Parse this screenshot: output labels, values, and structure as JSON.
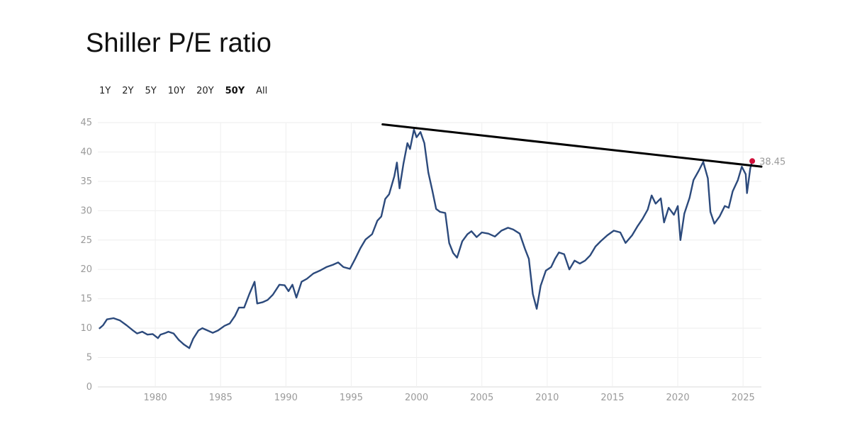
{
  "title": "Shiller P/E ratio",
  "range_buttons": [
    {
      "label": "1Y",
      "active": false
    },
    {
      "label": "2Y",
      "active": false
    },
    {
      "label": "5Y",
      "active": false
    },
    {
      "label": "10Y",
      "active": false
    },
    {
      "label": "20Y",
      "active": false
    },
    {
      "label": "50Y",
      "active": true
    },
    {
      "label": "All",
      "active": false
    }
  ],
  "chart_data": {
    "type": "line",
    "title": "Shiller P/E ratio",
    "xlabel": "",
    "ylabel": "",
    "xlim": [
      1975.6,
      2026.4
    ],
    "ylim": [
      0,
      45
    ],
    "x_ticks": [
      "1980",
      "1985",
      "1990",
      "1995",
      "2000",
      "2005",
      "2010",
      "2015",
      "2020",
      "2025"
    ],
    "y_ticks": [
      "0",
      "5",
      "10",
      "15",
      "20",
      "25",
      "30",
      "35",
      "40",
      "45"
    ],
    "grid": true,
    "legend": "none",
    "series": [
      {
        "color": "#2c4a7c",
        "points": [
          [
            1975.7,
            9.9
          ],
          [
            1976.0,
            10.5
          ],
          [
            1976.3,
            11.5
          ],
          [
            1976.8,
            11.7
          ],
          [
            1977.3,
            11.3
          ],
          [
            1977.8,
            10.5
          ],
          [
            1978.3,
            9.6
          ],
          [
            1978.6,
            9.1
          ],
          [
            1979.0,
            9.4
          ],
          [
            1979.4,
            8.9
          ],
          [
            1979.8,
            9.0
          ],
          [
            1980.2,
            8.3
          ],
          [
            1980.4,
            8.9
          ],
          [
            1980.8,
            9.2
          ],
          [
            1981.0,
            9.4
          ],
          [
            1981.4,
            9.1
          ],
          [
            1981.8,
            8.0
          ],
          [
            1982.2,
            7.2
          ],
          [
            1982.4,
            6.9
          ],
          [
            1982.6,
            6.6
          ],
          [
            1982.9,
            8.2
          ],
          [
            1983.3,
            9.6
          ],
          [
            1983.6,
            10.0
          ],
          [
            1984.0,
            9.6
          ],
          [
            1984.4,
            9.2
          ],
          [
            1984.8,
            9.6
          ],
          [
            1985.3,
            10.4
          ],
          [
            1985.7,
            10.8
          ],
          [
            1986.1,
            12.1
          ],
          [
            1986.4,
            13.5
          ],
          [
            1986.8,
            13.5
          ],
          [
            1987.2,
            15.8
          ],
          [
            1987.6,
            17.9
          ],
          [
            1987.8,
            14.2
          ],
          [
            1988.2,
            14.4
          ],
          [
            1988.6,
            14.8
          ],
          [
            1989.0,
            15.7
          ],
          [
            1989.5,
            17.4
          ],
          [
            1989.9,
            17.3
          ],
          [
            1990.2,
            16.3
          ],
          [
            1990.5,
            17.4
          ],
          [
            1990.8,
            15.2
          ],
          [
            1991.2,
            17.9
          ],
          [
            1991.6,
            18.4
          ],
          [
            1992.1,
            19.3
          ],
          [
            1992.6,
            19.8
          ],
          [
            1993.1,
            20.4
          ],
          [
            1993.6,
            20.8
          ],
          [
            1994.0,
            21.2
          ],
          [
            1994.4,
            20.4
          ],
          [
            1994.9,
            20.1
          ],
          [
            1995.3,
            21.8
          ],
          [
            1995.7,
            23.6
          ],
          [
            1996.1,
            25.1
          ],
          [
            1996.6,
            26.0
          ],
          [
            1997.0,
            28.3
          ],
          [
            1997.3,
            29.0
          ],
          [
            1997.6,
            32.0
          ],
          [
            1997.9,
            32.8
          ],
          [
            1998.3,
            35.9
          ],
          [
            1998.5,
            38.2
          ],
          [
            1998.7,
            33.8
          ],
          [
            1999.0,
            38.0
          ],
          [
            1999.3,
            41.5
          ],
          [
            1999.5,
            40.5
          ],
          [
            1999.8,
            43.8
          ],
          [
            2000.0,
            42.5
          ],
          [
            2000.3,
            43.4
          ],
          [
            2000.6,
            41.5
          ],
          [
            2000.9,
            36.5
          ],
          [
            2001.2,
            33.5
          ],
          [
            2001.5,
            30.3
          ],
          [
            2001.8,
            29.8
          ],
          [
            2002.2,
            29.6
          ],
          [
            2002.5,
            24.5
          ],
          [
            2002.8,
            22.8
          ],
          [
            2003.1,
            22.0
          ],
          [
            2003.5,
            24.8
          ],
          [
            2003.9,
            26.0
          ],
          [
            2004.2,
            26.5
          ],
          [
            2004.6,
            25.5
          ],
          [
            2005.0,
            26.3
          ],
          [
            2005.5,
            26.1
          ],
          [
            2006.0,
            25.6
          ],
          [
            2006.5,
            26.6
          ],
          [
            2007.0,
            27.1
          ],
          [
            2007.4,
            26.8
          ],
          [
            2007.9,
            26.1
          ],
          [
            2008.3,
            23.5
          ],
          [
            2008.6,
            21.8
          ],
          [
            2008.9,
            15.8
          ],
          [
            2009.2,
            13.3
          ],
          [
            2009.5,
            17.2
          ],
          [
            2009.9,
            19.8
          ],
          [
            2010.3,
            20.4
          ],
          [
            2010.6,
            21.8
          ],
          [
            2010.9,
            22.9
          ],
          [
            2011.3,
            22.6
          ],
          [
            2011.7,
            20.0
          ],
          [
            2012.1,
            21.5
          ],
          [
            2012.5,
            21.0
          ],
          [
            2012.9,
            21.5
          ],
          [
            2013.3,
            22.4
          ],
          [
            2013.7,
            23.9
          ],
          [
            2014.1,
            24.8
          ],
          [
            2014.6,
            25.8
          ],
          [
            2015.1,
            26.6
          ],
          [
            2015.6,
            26.3
          ],
          [
            2016.0,
            24.5
          ],
          [
            2016.5,
            25.8
          ],
          [
            2016.9,
            27.3
          ],
          [
            2017.3,
            28.6
          ],
          [
            2017.7,
            30.2
          ],
          [
            2018.0,
            32.6
          ],
          [
            2018.3,
            31.2
          ],
          [
            2018.7,
            32.1
          ],
          [
            2018.95,
            28.0
          ],
          [
            2019.3,
            30.5
          ],
          [
            2019.7,
            29.3
          ],
          [
            2020.0,
            30.8
          ],
          [
            2020.2,
            25.0
          ],
          [
            2020.5,
            29.5
          ],
          [
            2020.9,
            32.2
          ],
          [
            2021.2,
            35.2
          ],
          [
            2021.6,
            36.8
          ],
          [
            2021.95,
            38.3
          ],
          [
            2022.3,
            35.5
          ],
          [
            2022.5,
            29.8
          ],
          [
            2022.8,
            27.8
          ],
          [
            2023.2,
            29.0
          ],
          [
            2023.6,
            30.8
          ],
          [
            2023.9,
            30.5
          ],
          [
            2024.2,
            33.3
          ],
          [
            2024.6,
            35.2
          ],
          [
            2024.9,
            37.5
          ],
          [
            2025.2,
            36.2
          ],
          [
            2025.3,
            33.0
          ],
          [
            2025.55,
            37.2
          ],
          [
            2025.7,
            38.45
          ]
        ]
      }
    ],
    "trendline": {
      "color": "#000000",
      "from": [
        1997.4,
        44.7
      ],
      "to": [
        2026.4,
        37.5
      ]
    },
    "last_point": {
      "x": 2025.7,
      "y": 38.45,
      "label": "38.45",
      "color": "#d0103a"
    }
  }
}
